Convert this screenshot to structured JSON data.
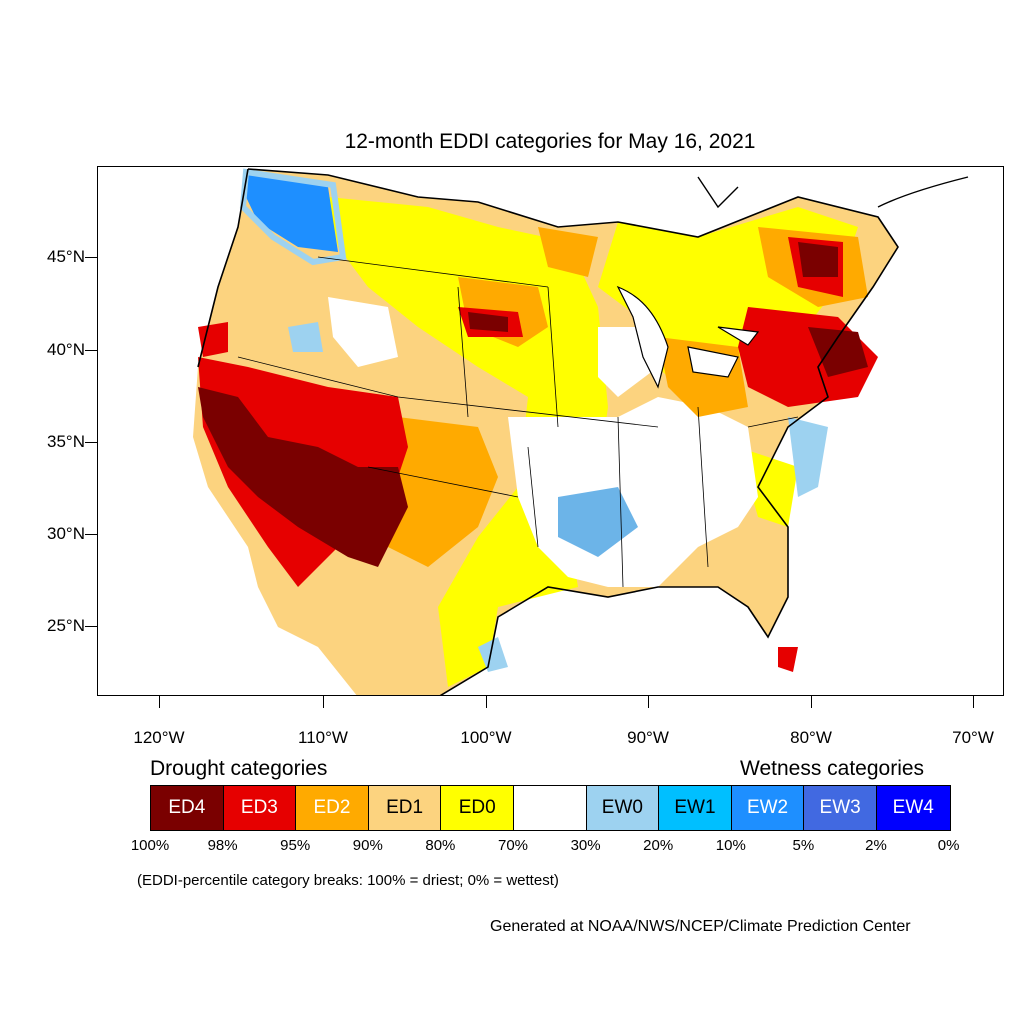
{
  "title": "12-month EDDI categories for May 16, 2021",
  "lat_labels": [
    "45°N",
    "40°N",
    "35°N",
    "30°N",
    "25°N"
  ],
  "lon_labels": [
    "120°W",
    "110°W",
    "100°W",
    "90°W",
    "80°W",
    "70°W"
  ],
  "drought_title": "Drought categories",
  "wetness_title": "Wetness categories",
  "categories": [
    {
      "label": "ED4",
      "color": "#7a0000",
      "text_color": "#ffffff"
    },
    {
      "label": "ED3",
      "color": "#e60000",
      "text_color": "#ffffff"
    },
    {
      "label": "ED2",
      "color": "#ffaa00",
      "text_color": "#ffffff"
    },
    {
      "label": "ED1",
      "color": "#fcd37f",
      "text_color": "#000000"
    },
    {
      "label": "ED0",
      "color": "#ffff00",
      "text_color": "#000000"
    },
    {
      "label": "",
      "color": "#ffffff",
      "text_color": "#000000"
    },
    {
      "label": "EW0",
      "color": "#9dd2f0",
      "text_color": "#000000"
    },
    {
      "label": "EW1",
      "color": "#00bfff",
      "text_color": "#000000"
    },
    {
      "label": "EW2",
      "color": "#1e8fff",
      "text_color": "#ffffff"
    },
    {
      "label": "EW3",
      "color": "#4169e1",
      "text_color": "#ffffff"
    },
    {
      "label": "EW4",
      "color": "#0000ff",
      "text_color": "#ffffff"
    }
  ],
  "percent_labels": [
    "100%",
    "98%",
    "95%",
    "90%",
    "80%",
    "70%",
    "30%",
    "20%",
    "10%",
    "5%",
    "2%",
    "0%"
  ],
  "note": "(EDDI-percentile category breaks: 100% = driest; 0% = wettest)",
  "credit": "Generated at NOAA/NWS/NCEP/Climate Prediction Center"
}
